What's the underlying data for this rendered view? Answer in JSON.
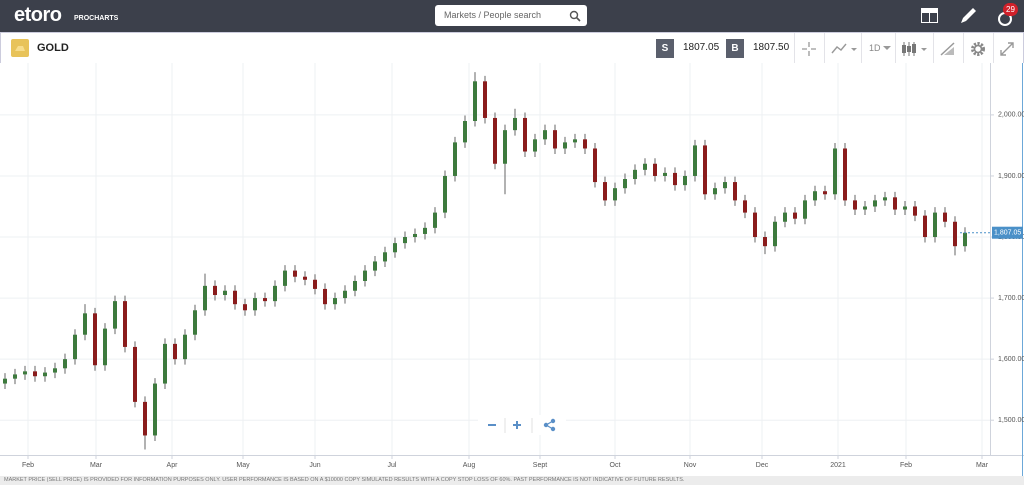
{
  "header": {
    "logo": "etoro",
    "logo_sub": "PROCHARTS",
    "search_placeholder": "Markets / People search",
    "notifications": "29"
  },
  "instrument": {
    "name": "GOLD",
    "sell_label": "S",
    "sell": "1807.05",
    "buy_label": "B",
    "buy": "1807.50",
    "interval": "1D"
  },
  "chart_data": {
    "type": "candlestick",
    "open": [
      1560,
      1568,
      1575,
      1580,
      1572,
      1578,
      1585,
      1600,
      1640,
      1675,
      1590,
      1650,
      1695,
      1620,
      1530,
      1475,
      1560,
      1625,
      1600,
      1640,
      1680,
      1720,
      1705,
      1712,
      1690,
      1680,
      1700,
      1695,
      1720,
      1745,
      1735,
      1730,
      1715,
      1690,
      1700,
      1712,
      1728,
      1745,
      1760,
      1775,
      1790,
      1800,
      1805,
      1815,
      1840,
      1900,
      1955,
      1990,
      2055,
      1995,
      1920,
      1975,
      1995,
      1940,
      1960,
      1975,
      1945,
      1955,
      1960,
      1945,
      1890,
      1860,
      1880,
      1895,
      1910,
      1920,
      1900,
      1905,
      1885,
      1900,
      1950,
      1870,
      1880,
      1890,
      1860,
      1840,
      1800,
      1785,
      1825,
      1840,
      1830,
      1860,
      1875,
      1870,
      1945,
      1860,
      1845,
      1850,
      1860,
      1865,
      1845,
      1850,
      1835,
      1800,
      1840,
      1825,
      1785
    ],
    "high": [
      1577,
      1584,
      1589,
      1589,
      1587,
      1594,
      1609,
      1649,
      1690,
      1684,
      1659,
      1704,
      1704,
      1629,
      1539,
      1569,
      1634,
      1634,
      1649,
      1689,
      1740,
      1729,
      1721,
      1721,
      1699,
      1709,
      1709,
      1729,
      1754,
      1754,
      1744,
      1739,
      1724,
      1709,
      1721,
      1737,
      1754,
      1769,
      1784,
      1799,
      1809,
      1814,
      1824,
      1849,
      1909,
      1964,
      1999,
      2070,
      2064,
      2004,
      1984,
      2010,
      2004,
      1969,
      1984,
      1984,
      1964,
      1969,
      1969,
      1954,
      1899,
      1889,
      1904,
      1919,
      1929,
      1929,
      1914,
      1914,
      1909,
      1959,
      1959,
      1889,
      1899,
      1899,
      1869,
      1849,
      1809,
      1834,
      1849,
      1849,
      1869,
      1884,
      1884,
      1954,
      1954,
      1869,
      1859,
      1869,
      1874,
      1874,
      1859,
      1859,
      1844,
      1849,
      1849,
      1834,
      1816
    ],
    "low": [
      1551,
      1559,
      1566,
      1563,
      1563,
      1569,
      1576,
      1591,
      1631,
      1581,
      1581,
      1641,
      1611,
      1521,
      1452,
      1466,
      1551,
      1591,
      1591,
      1631,
      1671,
      1696,
      1696,
      1681,
      1671,
      1671,
      1686,
      1686,
      1711,
      1726,
      1721,
      1706,
      1681,
      1681,
      1691,
      1703,
      1719,
      1736,
      1751,
      1766,
      1781,
      1791,
      1796,
      1806,
      1831,
      1891,
      1946,
      1981,
      1986,
      1911,
      1870,
      1966,
      1931,
      1931,
      1951,
      1936,
      1936,
      1946,
      1936,
      1881,
      1851,
      1851,
      1871,
      1886,
      1901,
      1891,
      1891,
      1876,
      1876,
      1891,
      1861,
      1861,
      1871,
      1851,
      1831,
      1791,
      1772,
      1776,
      1816,
      1821,
      1821,
      1851,
      1861,
      1861,
      1851,
      1836,
      1836,
      1841,
      1851,
      1836,
      1836,
      1826,
      1791,
      1791,
      1816,
      1770,
      1776
    ],
    "close": [
      1568,
      1575,
      1580,
      1572,
      1578,
      1585,
      1600,
      1640,
      1675,
      1590,
      1650,
      1695,
      1620,
      1530,
      1475,
      1560,
      1625,
      1600,
      1640,
      1680,
      1720,
      1705,
      1712,
      1690,
      1680,
      1700,
      1695,
      1720,
      1745,
      1735,
      1730,
      1715,
      1690,
      1700,
      1712,
      1728,
      1745,
      1760,
      1775,
      1790,
      1800,
      1805,
      1815,
      1840,
      1900,
      1955,
      1990,
      2055,
      1995,
      1920,
      1975,
      1995,
      1940,
      1960,
      1975,
      1945,
      1955,
      1960,
      1945,
      1890,
      1860,
      1880,
      1895,
      1910,
      1920,
      1900,
      1905,
      1885,
      1900,
      1950,
      1870,
      1880,
      1890,
      1860,
      1840,
      1800,
      1785,
      1825,
      1840,
      1830,
      1860,
      1875,
      1870,
      1945,
      1860,
      1845,
      1850,
      1860,
      1865,
      1845,
      1850,
      1835,
      1800,
      1840,
      1825,
      1785,
      1807
    ],
    "up_color": "#3d7a3d",
    "down_color": "#8a1c1c",
    "xlim": [
      -0.5,
      98.5
    ],
    "xticks": [
      {
        "value": 2.3,
        "label": "Feb"
      },
      {
        "value": 9.1,
        "label": "Mar"
      },
      {
        "value": 16.7,
        "label": "Apr"
      },
      {
        "value": 23.8,
        "label": "May"
      },
      {
        "value": 31,
        "label": "Jun"
      },
      {
        "value": 38.7,
        "label": "Jul"
      },
      {
        "value": 46.4,
        "label": "Aug"
      },
      {
        "value": 53.5,
        "label": "Sept"
      },
      {
        "value": 61,
        "label": "Oct"
      },
      {
        "value": 68.5,
        "label": "Nov"
      },
      {
        "value": 75.7,
        "label": "Dec"
      },
      {
        "value": 83.3,
        "label": "2021"
      },
      {
        "value": 90.1,
        "label": "Feb"
      },
      {
        "value": 97.7,
        "label": "Mar"
      }
    ],
    "ylim": [
      1443,
      2085
    ],
    "yticks": [
      {
        "value": 1500,
        "label": "1,500.00"
      },
      {
        "value": 1600,
        "label": "1,600.00"
      },
      {
        "value": 1700,
        "label": "1,700.00"
      },
      {
        "value": 1800,
        "label": "1,800.00"
      },
      {
        "value": 1900,
        "label": "1,900.00"
      },
      {
        "value": 2000,
        "label": "2,000.00"
      }
    ],
    "last_price": {
      "value": 1807.05,
      "label": "1,807.05"
    },
    "grid": true
  },
  "disclaimer": "MARKET PRICE (SELL PRICE) IS PROVIDED FOR INFORMATION PURPOSES ONLY. USER PERFORMANCE IS BASED ON A $10000 COPY SIMULATED RESULTS WITH A COPY STOP LOSS OF 60%. PAST PERFORMANCE IS NOT INDICATIVE OF FUTURE RESULTS."
}
